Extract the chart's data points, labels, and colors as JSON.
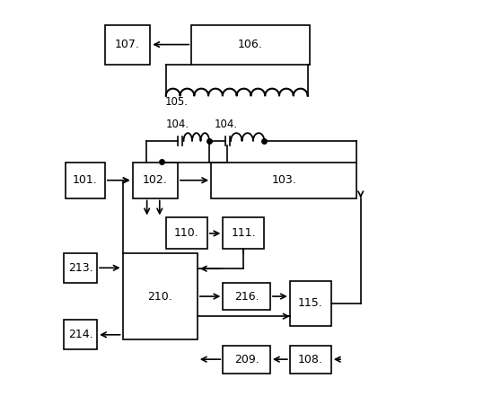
{
  "background": "#ffffff",
  "boxes": {
    "107": [
      0.13,
      0.84,
      0.115,
      0.1
    ],
    "106": [
      0.35,
      0.84,
      0.3,
      0.1
    ],
    "101": [
      0.03,
      0.5,
      0.1,
      0.09
    ],
    "102": [
      0.2,
      0.5,
      0.115,
      0.09
    ],
    "103": [
      0.4,
      0.5,
      0.37,
      0.09
    ],
    "110": [
      0.285,
      0.37,
      0.105,
      0.08
    ],
    "111": [
      0.43,
      0.37,
      0.105,
      0.08
    ],
    "210": [
      0.175,
      0.14,
      0.19,
      0.22
    ],
    "213": [
      0.025,
      0.285,
      0.085,
      0.075
    ],
    "214": [
      0.025,
      0.115,
      0.085,
      0.075
    ],
    "216": [
      0.43,
      0.215,
      0.12,
      0.07
    ],
    "115": [
      0.6,
      0.175,
      0.105,
      0.115
    ],
    "209": [
      0.43,
      0.055,
      0.12,
      0.07
    ],
    "108": [
      0.6,
      0.055,
      0.105,
      0.07
    ]
  }
}
